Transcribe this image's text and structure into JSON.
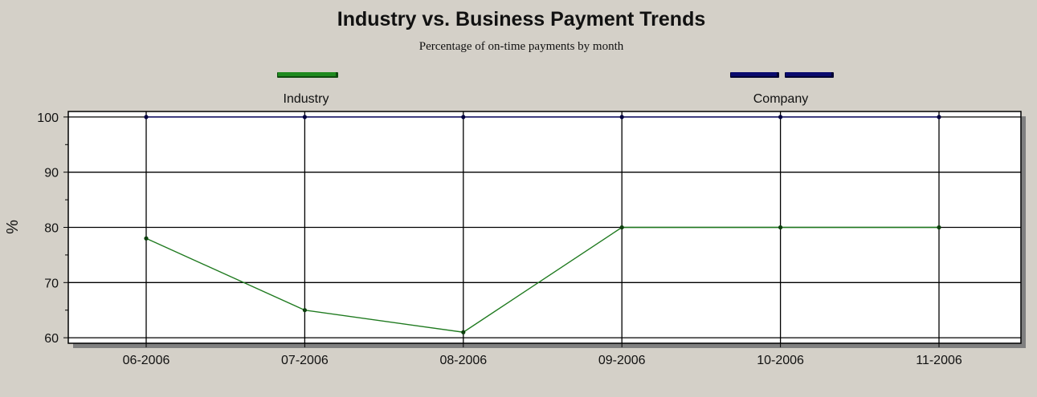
{
  "chart_data": {
    "type": "line",
    "title": "Industry vs. Business Payment Trends",
    "subtitle": "Percentage of on-time payments by month",
    "ylabel": "%",
    "xlabel": "",
    "categories": [
      "06-2006",
      "07-2006",
      "08-2006",
      "09-2006",
      "10-2006",
      "11-2006"
    ],
    "ylim": [
      59,
      101
    ],
    "yticks": [
      60,
      70,
      80,
      90,
      100
    ],
    "grid": true,
    "legend_position": "top",
    "series": [
      {
        "name": "Industry",
        "color": "#1f7a1f",
        "values": [
          78,
          65,
          61,
          80,
          80,
          80
        ]
      },
      {
        "name": "Company",
        "color": "#0a0a60",
        "values": [
          100,
          100,
          100,
          100,
          100,
          100
        ]
      }
    ]
  }
}
